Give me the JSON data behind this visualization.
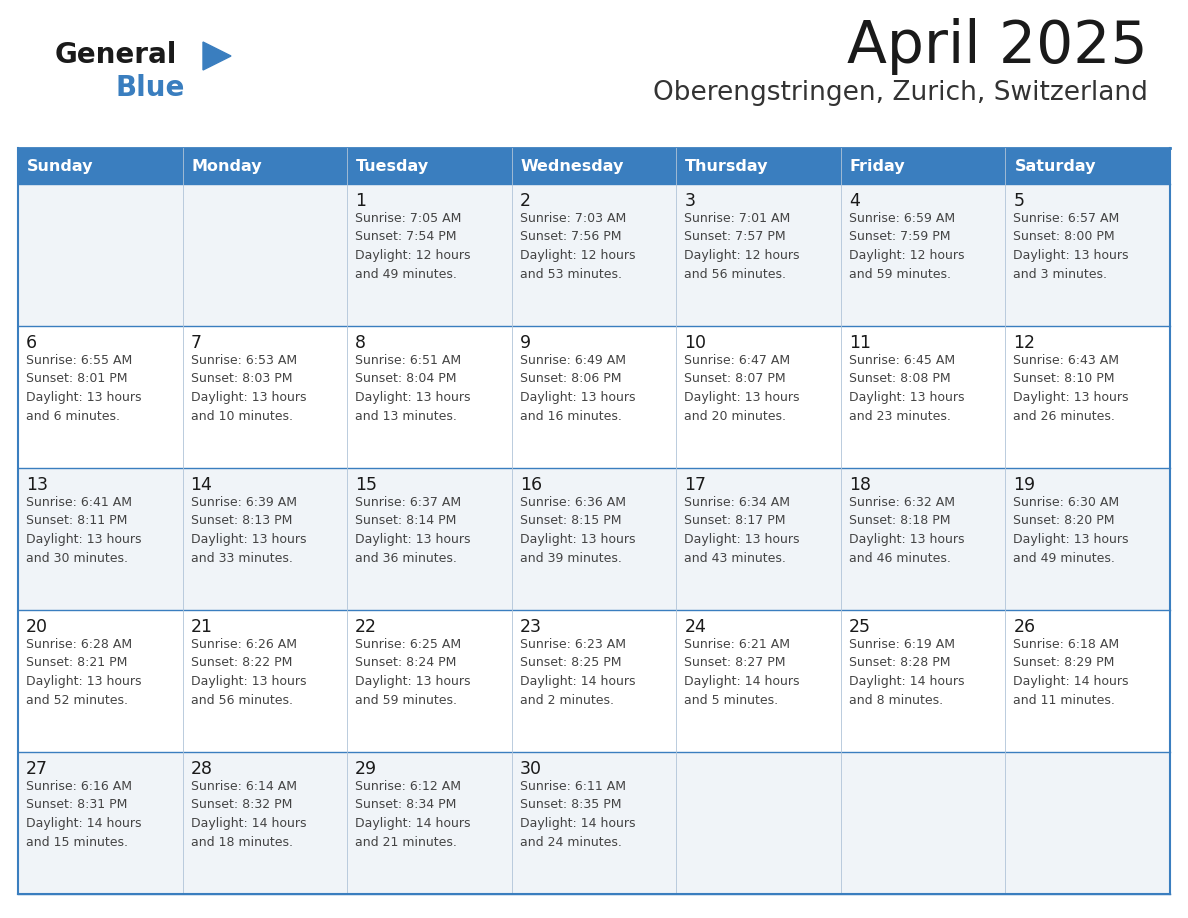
{
  "title": "April 2025",
  "subtitle": "Oberengstringen, Zurich, Switzerland",
  "header_color": "#3a7ebf",
  "header_text_color": "#ffffff",
  "row_bg_colors": [
    "#f0f4f8",
    "#ffffff",
    "#f0f4f8",
    "#ffffff",
    "#f0f4f8"
  ],
  "border_color": "#3a7ebf",
  "divider_color": "#b0c4d8",
  "day_headers": [
    "Sunday",
    "Monday",
    "Tuesday",
    "Wednesday",
    "Thursday",
    "Friday",
    "Saturday"
  ],
  "title_color": "#1a1a1a",
  "subtitle_color": "#333333",
  "cell_text_color": "#444444",
  "day_num_color": "#1a1a1a",
  "logo_general_color": "#1a1a1a",
  "logo_blue_color": "#3a7ebf",
  "logo_triangle_color": "#3a7ebf",
  "calendar": [
    [
      {
        "day": null,
        "info": null
      },
      {
        "day": null,
        "info": null
      },
      {
        "day": 1,
        "info": "Sunrise: 7:05 AM\nSunset: 7:54 PM\nDaylight: 12 hours\nand 49 minutes."
      },
      {
        "day": 2,
        "info": "Sunrise: 7:03 AM\nSunset: 7:56 PM\nDaylight: 12 hours\nand 53 minutes."
      },
      {
        "day": 3,
        "info": "Sunrise: 7:01 AM\nSunset: 7:57 PM\nDaylight: 12 hours\nand 56 minutes."
      },
      {
        "day": 4,
        "info": "Sunrise: 6:59 AM\nSunset: 7:59 PM\nDaylight: 12 hours\nand 59 minutes."
      },
      {
        "day": 5,
        "info": "Sunrise: 6:57 AM\nSunset: 8:00 PM\nDaylight: 13 hours\nand 3 minutes."
      }
    ],
    [
      {
        "day": 6,
        "info": "Sunrise: 6:55 AM\nSunset: 8:01 PM\nDaylight: 13 hours\nand 6 minutes."
      },
      {
        "day": 7,
        "info": "Sunrise: 6:53 AM\nSunset: 8:03 PM\nDaylight: 13 hours\nand 10 minutes."
      },
      {
        "day": 8,
        "info": "Sunrise: 6:51 AM\nSunset: 8:04 PM\nDaylight: 13 hours\nand 13 minutes."
      },
      {
        "day": 9,
        "info": "Sunrise: 6:49 AM\nSunset: 8:06 PM\nDaylight: 13 hours\nand 16 minutes."
      },
      {
        "day": 10,
        "info": "Sunrise: 6:47 AM\nSunset: 8:07 PM\nDaylight: 13 hours\nand 20 minutes."
      },
      {
        "day": 11,
        "info": "Sunrise: 6:45 AM\nSunset: 8:08 PM\nDaylight: 13 hours\nand 23 minutes."
      },
      {
        "day": 12,
        "info": "Sunrise: 6:43 AM\nSunset: 8:10 PM\nDaylight: 13 hours\nand 26 minutes."
      }
    ],
    [
      {
        "day": 13,
        "info": "Sunrise: 6:41 AM\nSunset: 8:11 PM\nDaylight: 13 hours\nand 30 minutes."
      },
      {
        "day": 14,
        "info": "Sunrise: 6:39 AM\nSunset: 8:13 PM\nDaylight: 13 hours\nand 33 minutes."
      },
      {
        "day": 15,
        "info": "Sunrise: 6:37 AM\nSunset: 8:14 PM\nDaylight: 13 hours\nand 36 minutes."
      },
      {
        "day": 16,
        "info": "Sunrise: 6:36 AM\nSunset: 8:15 PM\nDaylight: 13 hours\nand 39 minutes."
      },
      {
        "day": 17,
        "info": "Sunrise: 6:34 AM\nSunset: 8:17 PM\nDaylight: 13 hours\nand 43 minutes."
      },
      {
        "day": 18,
        "info": "Sunrise: 6:32 AM\nSunset: 8:18 PM\nDaylight: 13 hours\nand 46 minutes."
      },
      {
        "day": 19,
        "info": "Sunrise: 6:30 AM\nSunset: 8:20 PM\nDaylight: 13 hours\nand 49 minutes."
      }
    ],
    [
      {
        "day": 20,
        "info": "Sunrise: 6:28 AM\nSunset: 8:21 PM\nDaylight: 13 hours\nand 52 minutes."
      },
      {
        "day": 21,
        "info": "Sunrise: 6:26 AM\nSunset: 8:22 PM\nDaylight: 13 hours\nand 56 minutes."
      },
      {
        "day": 22,
        "info": "Sunrise: 6:25 AM\nSunset: 8:24 PM\nDaylight: 13 hours\nand 59 minutes."
      },
      {
        "day": 23,
        "info": "Sunrise: 6:23 AM\nSunset: 8:25 PM\nDaylight: 14 hours\nand 2 minutes."
      },
      {
        "day": 24,
        "info": "Sunrise: 6:21 AM\nSunset: 8:27 PM\nDaylight: 14 hours\nand 5 minutes."
      },
      {
        "day": 25,
        "info": "Sunrise: 6:19 AM\nSunset: 8:28 PM\nDaylight: 14 hours\nand 8 minutes."
      },
      {
        "day": 26,
        "info": "Sunrise: 6:18 AM\nSunset: 8:29 PM\nDaylight: 14 hours\nand 11 minutes."
      }
    ],
    [
      {
        "day": 27,
        "info": "Sunrise: 6:16 AM\nSunset: 8:31 PM\nDaylight: 14 hours\nand 15 minutes."
      },
      {
        "day": 28,
        "info": "Sunrise: 6:14 AM\nSunset: 8:32 PM\nDaylight: 14 hours\nand 18 minutes."
      },
      {
        "day": 29,
        "info": "Sunrise: 6:12 AM\nSunset: 8:34 PM\nDaylight: 14 hours\nand 21 minutes."
      },
      {
        "day": 30,
        "info": "Sunrise: 6:11 AM\nSunset: 8:35 PM\nDaylight: 14 hours\nand 24 minutes."
      },
      {
        "day": null,
        "info": null
      },
      {
        "day": null,
        "info": null
      },
      {
        "day": null,
        "info": null
      }
    ]
  ]
}
